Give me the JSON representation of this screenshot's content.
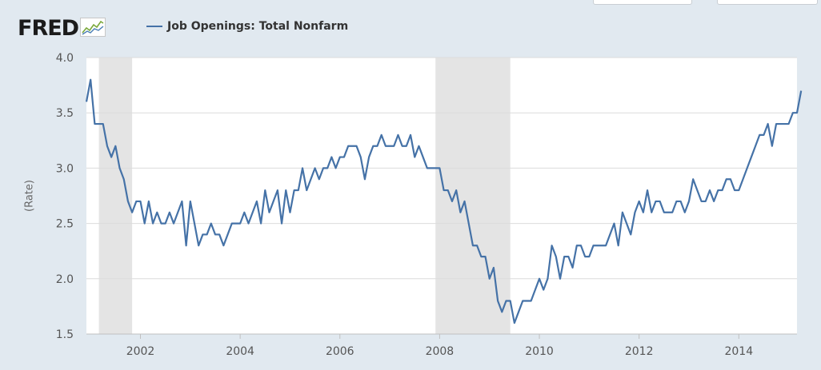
{
  "logo": {
    "text": "FRED",
    "icon": "fred-sparkline-logo-icon"
  },
  "chart_data": {
    "type": "line",
    "title": "",
    "xlabel": "",
    "ylabel": "(Rate)",
    "ylim": [
      1.5,
      4.0
    ],
    "xlim": [
      "2000-12",
      "2015-03"
    ],
    "yticks": [
      "1.5",
      "2.0",
      "2.5",
      "3.0",
      "3.5",
      "4.0"
    ],
    "xticks": [
      "2002",
      "2004",
      "2006",
      "2008",
      "2010",
      "2012",
      "2014"
    ],
    "grid": true,
    "legend": "top-left",
    "recessions": [
      {
        "start": "2001-03",
        "end": "2001-11"
      },
      {
        "start": "2007-12",
        "end": "2009-06"
      }
    ],
    "series": [
      {
        "name": "Job Openings: Total Nonfarm",
        "color": "#4572a7",
        "start": "2000-12",
        "frequency": "monthly",
        "values": [
          3.6,
          3.8,
          3.4,
          3.4,
          3.4,
          3.2,
          3.1,
          3.2,
          3.0,
          2.9,
          2.7,
          2.6,
          2.7,
          2.7,
          2.5,
          2.7,
          2.5,
          2.6,
          2.5,
          2.5,
          2.6,
          2.5,
          2.6,
          2.7,
          2.3,
          2.7,
          2.5,
          2.3,
          2.4,
          2.4,
          2.5,
          2.4,
          2.4,
          2.3,
          2.4,
          2.5,
          2.5,
          2.5,
          2.6,
          2.5,
          2.6,
          2.7,
          2.5,
          2.8,
          2.6,
          2.7,
          2.8,
          2.5,
          2.8,
          2.6,
          2.8,
          2.8,
          3.0,
          2.8,
          2.9,
          3.0,
          2.9,
          3.0,
          3.0,
          3.1,
          3.0,
          3.1,
          3.1,
          3.2,
          3.2,
          3.2,
          3.1,
          2.9,
          3.1,
          3.2,
          3.2,
          3.3,
          3.2,
          3.2,
          3.2,
          3.3,
          3.2,
          3.2,
          3.3,
          3.1,
          3.2,
          3.1,
          3.0,
          3.0,
          3.0,
          3.0,
          2.8,
          2.8,
          2.7,
          2.8,
          2.6,
          2.7,
          2.5,
          2.3,
          2.3,
          2.2,
          2.2,
          2.0,
          2.1,
          1.8,
          1.7,
          1.8,
          1.8,
          1.6,
          1.7,
          1.8,
          1.8,
          1.8,
          1.9,
          2.0,
          1.9,
          2.0,
          2.3,
          2.2,
          2.0,
          2.2,
          2.2,
          2.1,
          2.3,
          2.3,
          2.2,
          2.2,
          2.3,
          2.3,
          2.3,
          2.3,
          2.4,
          2.5,
          2.3,
          2.6,
          2.5,
          2.4,
          2.6,
          2.7,
          2.6,
          2.8,
          2.6,
          2.7,
          2.7,
          2.6,
          2.6,
          2.6,
          2.7,
          2.7,
          2.6,
          2.7,
          2.9,
          2.8,
          2.7,
          2.7,
          2.8,
          2.7,
          2.8,
          2.8,
          2.9,
          2.9,
          2.8,
          2.8,
          2.9,
          3.0,
          3.1,
          3.2,
          3.3,
          3.3,
          3.4,
          3.2,
          3.4,
          3.4,
          3.4,
          3.4,
          3.5,
          3.5,
          3.7
        ]
      }
    ]
  }
}
